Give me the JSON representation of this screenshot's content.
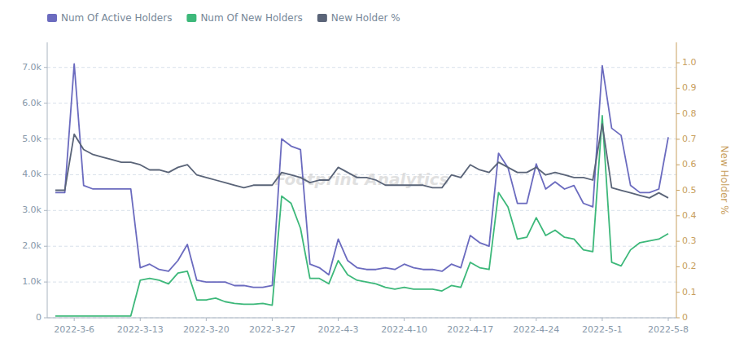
{
  "chart_data": {
    "type": "line",
    "categories": [
      null,
      null,
      "2022-3-6",
      null,
      null,
      null,
      null,
      null,
      null,
      "2022-3-13",
      null,
      null,
      null,
      null,
      null,
      null,
      "2022-3-20",
      null,
      null,
      null,
      null,
      null,
      null,
      "2022-3-27",
      null,
      null,
      null,
      null,
      null,
      null,
      "2022-4-3",
      null,
      null,
      null,
      null,
      null,
      null,
      "2022-4-10",
      null,
      null,
      null,
      null,
      null,
      null,
      "2022-4-17",
      null,
      null,
      null,
      null,
      null,
      null,
      "2022-4-24",
      null,
      null,
      null,
      null,
      null,
      null,
      "2022-5-1",
      null,
      null,
      null,
      null,
      null,
      null,
      "2022-5-8"
    ],
    "series": [
      {
        "name": "Num Of Active Holders",
        "color": "#6b6bbf",
        "values": [
          3500,
          3500,
          7100,
          3700,
          3600,
          3600,
          3600,
          3600,
          3600,
          1400,
          1500,
          1350,
          1300,
          1600,
          2050,
          1050,
          1000,
          1000,
          1000,
          900,
          900,
          850,
          850,
          900,
          5000,
          4800,
          4700,
          1500,
          1400,
          1200,
          2200,
          1600,
          1400,
          1350,
          1350,
          1400,
          1350,
          1500,
          1400,
          1350,
          1350,
          1300,
          1500,
          1400,
          2300,
          2100,
          2000,
          4600,
          4200,
          3200,
          3200,
          4300,
          3600,
          3800,
          3600,
          3700,
          3200,
          3100,
          7050,
          5300,
          5100,
          3700,
          3500,
          3500,
          3600,
          5050
        ]
      },
      {
        "name": "Num Of New Holders",
        "color": "#3db87a",
        "values": [
          50,
          50,
          50,
          50,
          50,
          50,
          50,
          50,
          50,
          1050,
          1100,
          1050,
          950,
          1250,
          1300,
          500,
          500,
          550,
          450,
          400,
          380,
          380,
          400,
          350,
          3400,
          3200,
          2500,
          1100,
          1100,
          950,
          1600,
          1200,
          1050,
          1000,
          950,
          850,
          800,
          850,
          800,
          800,
          800,
          750,
          900,
          850,
          1550,
          1400,
          1350,
          3500,
          3100,
          2200,
          2250,
          2800,
          2300,
          2450,
          2250,
          2200,
          1900,
          1850,
          5650,
          1550,
          1450,
          1900,
          2100,
          2150,
          2200,
          2350
        ]
      },
      {
        "name": "New Holder %",
        "color": "#5a6478",
        "axis": "y2",
        "values": [
          0.5,
          0.5,
          0.72,
          0.66,
          0.64,
          0.63,
          0.62,
          0.61,
          0.61,
          0.6,
          0.58,
          0.58,
          0.57,
          0.59,
          0.6,
          0.56,
          0.55,
          0.54,
          0.53,
          0.52,
          0.51,
          0.52,
          0.52,
          0.52,
          0.57,
          0.56,
          0.55,
          0.53,
          0.54,
          0.54,
          0.59,
          0.57,
          0.55,
          0.55,
          0.54,
          0.52,
          0.52,
          0.52,
          0.52,
          0.52,
          0.51,
          0.51,
          0.56,
          0.55,
          0.6,
          0.58,
          0.57,
          0.61,
          0.59,
          0.57,
          0.57,
          0.59,
          0.56,
          0.57,
          0.56,
          0.55,
          0.55,
          0.54,
          0.76,
          0.51,
          0.5,
          0.49,
          0.48,
          0.47,
          0.49,
          0.47
        ]
      }
    ],
    "ylim": [
      0,
      7700
    ],
    "yticks": [
      0,
      {
        "value": 1000,
        "label": "1.0k"
      },
      {
        "value": 2000,
        "label": "2.0k"
      },
      {
        "value": 3000,
        "label": "3.0k"
      },
      {
        "value": 4000,
        "label": "4.0k"
      },
      {
        "value": 5000,
        "label": "5.0k"
      },
      {
        "value": 6000,
        "label": "6.0k"
      },
      {
        "value": 7000,
        "label": "7.0k"
      }
    ],
    "y2lim": [
      0,
      1.08
    ],
    "y2ticks": [
      0,
      0.1,
      0.2,
      0.3,
      0.4,
      0.5,
      0.6,
      0.7,
      0.8,
      0.9,
      {
        "value": 1.0,
        "label": "1.0"
      }
    ],
    "y2label": "New Holder %",
    "annotations": [
      "Footprint Analytics"
    ],
    "grid": true,
    "legend": "top"
  }
}
